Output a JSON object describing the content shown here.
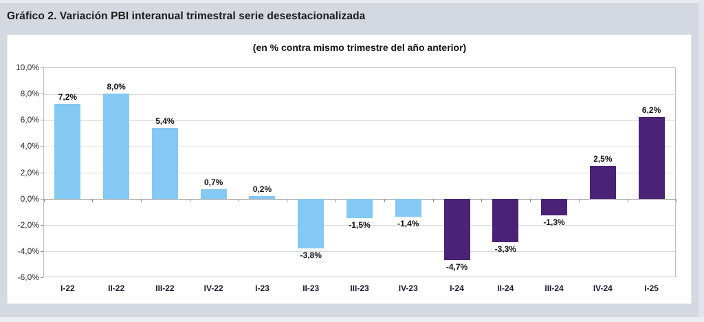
{
  "page": {
    "title": "Gráfico 2. Variación PBI interanual trimestral serie desestacionalizada"
  },
  "chart_data": {
    "type": "bar",
    "title": "(en % contra mismo trimestre del año anterior)",
    "categories": [
      "I-22",
      "II-22",
      "III-22",
      "IV-22",
      "I-23",
      "II-23",
      "III-23",
      "IV-23",
      "I-24",
      "II-24",
      "III-24",
      "IV-24",
      "I-25"
    ],
    "values": [
      7.2,
      8.0,
      5.4,
      0.7,
      0.2,
      -3.8,
      -1.5,
      -1.4,
      -4.7,
      -3.3,
      -1.3,
      2.5,
      6.2
    ],
    "value_labels": [
      "7,2%",
      "8,0%",
      "5,4%",
      "0,7%",
      "0,2%",
      "-3,8%",
      "-1,5%",
      "-1,4%",
      "-4,7%",
      "-3,3%",
      "-1,3%",
      "2,5%",
      "6,2%"
    ],
    "bar_colors": [
      "#84C9F4",
      "#84C9F4",
      "#84C9F4",
      "#84C9F4",
      "#84C9F4",
      "#84C9F4",
      "#84C9F4",
      "#84C9F4",
      "#4B2277",
      "#4B2277",
      "#4B2277",
      "#4B2277",
      "#4B2277"
    ],
    "ylim": [
      -6,
      10
    ],
    "ytick_values": [
      10,
      8,
      6,
      4,
      2,
      0,
      -2,
      -4,
      -6
    ],
    "ytick_labels": [
      "10,0%",
      "8,0%",
      "6,0%",
      "4,0%",
      "2,0%",
      "0,0%",
      "-2,0%",
      "-4,0%",
      "-6,0%"
    ],
    "grid": true,
    "legend": "none",
    "xlabel": "",
    "ylabel": ""
  },
  "colors": {
    "background": "#D3D8E1",
    "panel": "#FFFFFF",
    "light_blue_series": "#84C9F4",
    "dark_purple_series": "#4B2277",
    "gridline": "#D9D9D9",
    "axis": "#8C8C8C"
  }
}
